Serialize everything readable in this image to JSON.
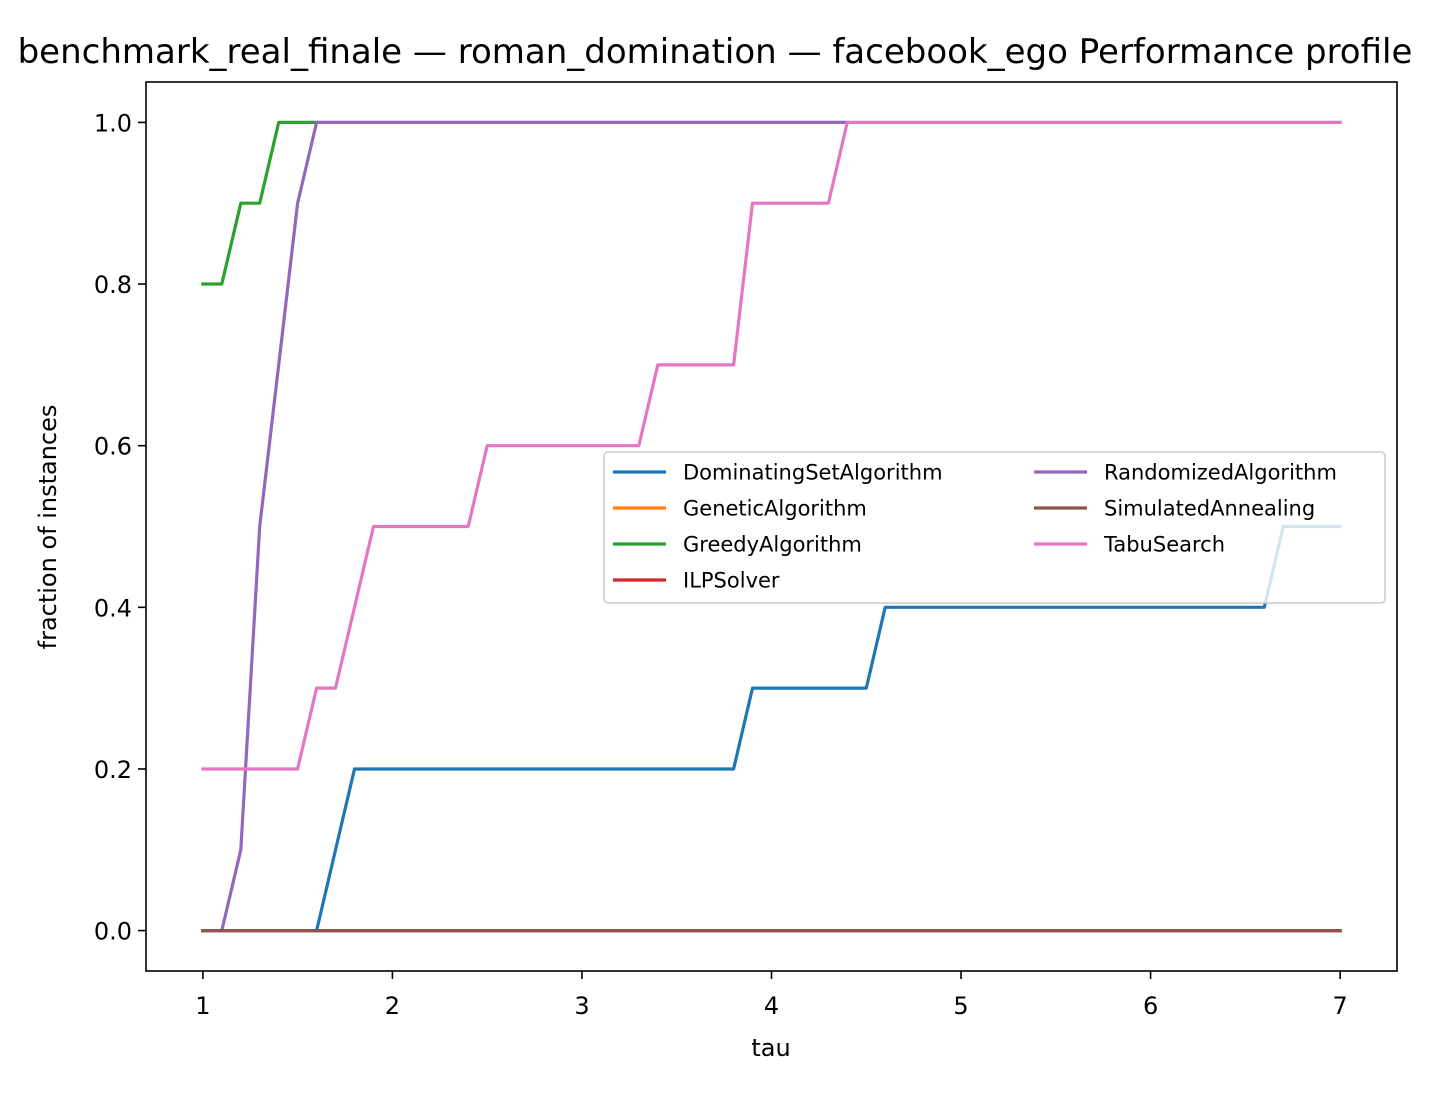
{
  "chart_data": {
    "type": "line",
    "title": "benchmark_real_finale — roman_domination — facebook_ego Performance profile",
    "xlabel": "tau",
    "ylabel": "fraction of instances",
    "xlim": [
      0.7,
      7.3
    ],
    "ylim": [
      -0.05,
      1.05
    ],
    "xticks": [
      1,
      2,
      3,
      4,
      5,
      6,
      7
    ],
    "yticks": [
      0.0,
      0.2,
      0.4,
      0.6,
      0.8,
      1.0
    ],
    "xtick_labels": [
      "1",
      "2",
      "3",
      "4",
      "5",
      "6",
      "7"
    ],
    "ytick_labels": [
      "0.0",
      "0.2",
      "0.4",
      "0.6",
      "0.8",
      "1.0"
    ],
    "grid": false,
    "legend": {
      "placement": "center-right",
      "columns": 2
    },
    "series": [
      {
        "name": "DominatingSetAlgorithm",
        "color": "#1f77b4",
        "points": [
          [
            1.0,
            0.0
          ],
          [
            1.6,
            0.0
          ],
          [
            1.8,
            0.2
          ],
          [
            3.8,
            0.2
          ],
          [
            3.9,
            0.3
          ],
          [
            4.5,
            0.3
          ],
          [
            4.6,
            0.4
          ],
          [
            6.6,
            0.4
          ],
          [
            6.7,
            0.5
          ],
          [
            7.0,
            0.5
          ]
        ]
      },
      {
        "name": "GeneticAlgorithm",
        "color": "#ff7f0e",
        "points": [
          [
            1.0,
            0.0
          ],
          [
            7.0,
            0.0
          ]
        ]
      },
      {
        "name": "GreedyAlgorithm",
        "color": "#2ca02c",
        "points": [
          [
            1.0,
            0.8
          ],
          [
            1.1,
            0.8
          ],
          [
            1.2,
            0.9
          ],
          [
            1.3,
            0.9
          ],
          [
            1.4,
            1.0
          ],
          [
            1.6,
            1.0
          ]
        ]
      },
      {
        "name": "ILPSolver",
        "color": "#d62728",
        "points": [
          [
            1.0,
            0.0
          ],
          [
            7.0,
            0.0
          ]
        ]
      },
      {
        "name": "RandomizedAlgorithm",
        "color": "#9467bd",
        "points": [
          [
            1.0,
            0.0
          ],
          [
            1.1,
            0.0
          ],
          [
            1.2,
            0.1
          ],
          [
            1.3,
            0.5
          ],
          [
            1.4,
            0.7
          ],
          [
            1.5,
            0.9
          ],
          [
            1.6,
            1.0
          ],
          [
            4.4,
            1.0
          ]
        ]
      },
      {
        "name": "SimulatedAnnealing",
        "color": "#8c564b",
        "points": [
          [
            1.0,
            0.0
          ],
          [
            7.0,
            0.0
          ]
        ]
      },
      {
        "name": "TabuSearch",
        "color": "#e377c2",
        "points": [
          [
            1.0,
            0.2
          ],
          [
            1.5,
            0.2
          ],
          [
            1.6,
            0.3
          ],
          [
            1.7,
            0.3
          ],
          [
            1.8,
            0.4
          ],
          [
            1.9,
            0.5
          ],
          [
            2.4,
            0.5
          ],
          [
            2.5,
            0.6
          ],
          [
            3.3,
            0.6
          ],
          [
            3.4,
            0.7
          ],
          [
            3.8,
            0.7
          ],
          [
            3.9,
            0.9
          ],
          [
            4.3,
            0.9
          ],
          [
            4.4,
            1.0
          ],
          [
            7.0,
            1.0
          ]
        ]
      }
    ]
  }
}
